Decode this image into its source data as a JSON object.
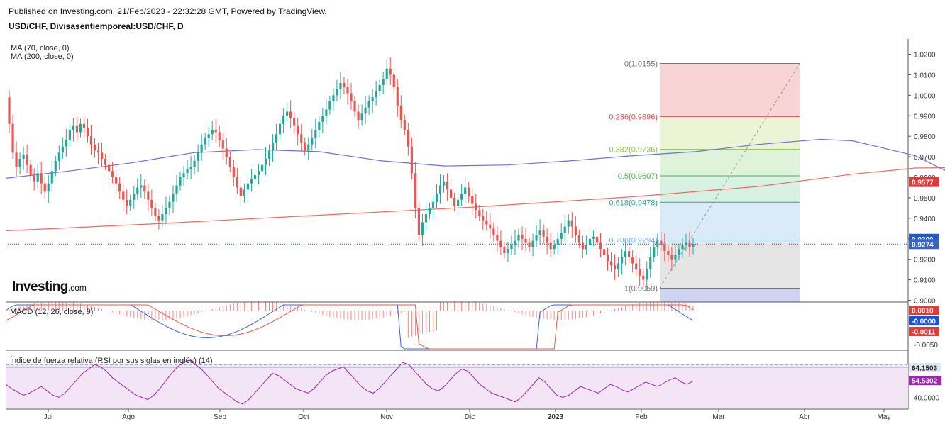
{
  "header": {
    "published": "Published on Investing.com, 21/Feb/2023 - 22:32:28 GMT, Powered by TradingView.",
    "symbol": "USD/CHF, Divisasentiemporeal:USD/CHF, D"
  },
  "indicators": {
    "ma70": "MA (70, close, 0)",
    "ma200": "MA (200, close, 0)",
    "macd": "MACD (12, 26, close, 9)",
    "rsi": "Índice de fuerza relativa (RSI por sus siglas en inglés) (14)"
  },
  "logo": {
    "main": "Investing",
    "suffix": ".com"
  },
  "colors": {
    "up": "#26a69a",
    "down": "#ef5350",
    "ma70": "#6b6fdc",
    "ma200": "#ef6a63",
    "macd_line": "#3d63d8",
    "signal_line": "#ef5350",
    "rsi_line": "#9c27b0",
    "rsi_fill": "#f3e5f5",
    "price_line": "#1e4fa0"
  },
  "chart_data": {
    "type": "candlestick",
    "x_ticks": [
      "Jul",
      "Ago",
      "Sep",
      "Oct",
      "Nov",
      "Dic",
      "2023",
      "Feb",
      "Mar",
      "Abr",
      "May"
    ],
    "price_ticks": [
      "1.0200",
      "1.0100",
      "1.0000",
      "0.9900",
      "0.9800",
      "0.9700",
      "0.9600",
      "0.9500",
      "0.9400",
      "0.9300",
      "0.9200",
      "0.9100",
      "0.9000"
    ],
    "price_range": [
      0.9,
      1.0205
    ],
    "last_price": "0.9274",
    "ma200_value": "0.9577",
    "fib_high_label": "0.9300",
    "fibonacci": [
      {
        "level": "0",
        "value": "1.0155",
        "label": "0(1.0155)",
        "price": 1.0155,
        "color": "#777777"
      },
      {
        "level": "0.236",
        "value": "0.9896",
        "label": "0.236(0.9896)",
        "price": 0.9896,
        "color": "#e0524f"
      },
      {
        "level": "0.382",
        "value": "0.9736",
        "label": "0.382(0.9736)",
        "price": 0.9736,
        "color": "#8bc34a"
      },
      {
        "level": "0.5",
        "value": "0.9607",
        "label": "0.5(0.9607)",
        "price": 0.9607,
        "color": "#4caf50"
      },
      {
        "level": "0.618",
        "value": "0.9478",
        "label": "0.618(0.9478)",
        "price": 0.9478,
        "color": "#26a69a"
      },
      {
        "level": "0.786",
        "value": "0.9294",
        "label": "0.786(0.9294)",
        "price": 0.9294,
        "color": "#64b5f6"
      },
      {
        "level": "1",
        "value": "0.9059",
        "label": "1(0.9059)",
        "price": 0.9059,
        "color": "#777777"
      }
    ],
    "ma70": [
      [
        0,
        0.9595
      ],
      [
        20,
        0.963
      ],
      [
        40,
        0.967
      ],
      [
        60,
        0.972
      ],
      [
        80,
        0.9735
      ],
      [
        100,
        0.9725
      ],
      [
        120,
        0.968
      ],
      [
        140,
        0.9655
      ],
      [
        160,
        0.966
      ],
      [
        180,
        0.968
      ],
      [
        200,
        0.9705
      ],
      [
        220,
        0.9725
      ],
      [
        240,
        0.976
      ],
      [
        260,
        0.9785
      ],
      [
        270,
        0.9778
      ],
      [
        280,
        0.9742
      ],
      [
        290,
        0.9705
      ],
      [
        300,
        0.963
      ],
      [
        310,
        0.9545
      ],
      [
        320,
        0.9445
      ],
      [
        326,
        0.9345
      ],
      [
        330,
        0.9325
      ]
    ],
    "ma200": [
      [
        0,
        0.9339
      ],
      [
        50,
        0.9375
      ],
      [
        100,
        0.9415
      ],
      [
        150,
        0.9455
      ],
      [
        200,
        0.9505
      ],
      [
        240,
        0.9555
      ],
      [
        270,
        0.9615
      ],
      [
        290,
        0.9645
      ],
      [
        310,
        0.9648
      ],
      [
        325,
        0.963
      ],
      [
        330,
        0.9577
      ]
    ],
    "closes": [
      0.999,
      0.986,
      0.972,
      0.965,
      0.969,
      0.971,
      0.966,
      0.961,
      0.958,
      0.962,
      0.957,
      0.953,
      0.957,
      0.963,
      0.968,
      0.972,
      0.975,
      0.978,
      0.983,
      0.985,
      0.982,
      0.986,
      0.984,
      0.98,
      0.976,
      0.973,
      0.972,
      0.969,
      0.966,
      0.963,
      0.96,
      0.957,
      0.953,
      0.949,
      0.946,
      0.949,
      0.952,
      0.955,
      0.956,
      0.953,
      0.949,
      0.945,
      0.941,
      0.939,
      0.942,
      0.945,
      0.948,
      0.952,
      0.956,
      0.96,
      0.962,
      0.964,
      0.965,
      0.968,
      0.972,
      0.976,
      0.979,
      0.981,
      0.983,
      0.982,
      0.978,
      0.974,
      0.97,
      0.965,
      0.96,
      0.955,
      0.951,
      0.954,
      0.957,
      0.959,
      0.961,
      0.963,
      0.966,
      0.969,
      0.973,
      0.977,
      0.981,
      0.986,
      0.99,
      0.992,
      0.989,
      0.985,
      0.981,
      0.977,
      0.973,
      0.976,
      0.979,
      0.983,
      0.987,
      0.99,
      0.993,
      0.997,
      1.0,
      1.003,
      1.006,
      1.004,
      1.001,
      0.997,
      0.992,
      0.988,
      0.991,
      0.994,
      0.997,
      0.999,
      1.002,
      1.005,
      1.008,
      1.013,
      1.01,
      1.004,
      0.995,
      0.988,
      0.983,
      0.975,
      0.962,
      0.945,
      0.932,
      0.938,
      0.942,
      0.945,
      0.948,
      0.952,
      0.956,
      0.958,
      0.954,
      0.95,
      0.946,
      0.949,
      0.952,
      0.955,
      0.951,
      0.947,
      0.944,
      0.941,
      0.939,
      0.937,
      0.935,
      0.932,
      0.929,
      0.926,
      0.923,
      0.925,
      0.927,
      0.929,
      0.932,
      0.93,
      0.928,
      0.926,
      0.929,
      0.932,
      0.934,
      0.931,
      0.928,
      0.925,
      0.927,
      0.93,
      0.933,
      0.936,
      0.939,
      0.936,
      0.932,
      0.928,
      0.925,
      0.927,
      0.93,
      0.931,
      0.928,
      0.925,
      0.922,
      0.919,
      0.917,
      0.915,
      0.918,
      0.921,
      0.924,
      0.921,
      0.918,
      0.915,
      0.912,
      0.91,
      0.915,
      0.921,
      0.926,
      0.929,
      0.927,
      0.924,
      0.922,
      0.92,
      0.922,
      0.925,
      0.927,
      0.928,
      0.926,
      0.9274
    ],
    "macd_ticks": [
      "0.0000",
      "-0.0050"
    ],
    "macd_labels": {
      "hist": "0.0010",
      "macd": "-0.0000",
      "signal": "-0.0011"
    },
    "rsi_ticks": [
      "40.0000"
    ],
    "rsi_labels": {
      "upper": "64.1503",
      "value": "54.5302"
    },
    "rsi": [
      52,
      48,
      45,
      42,
      44,
      47,
      50,
      46,
      42,
      40,
      44,
      50,
      56,
      62,
      66,
      70,
      68,
      64,
      58,
      54,
      50,
      46,
      42,
      40,
      38,
      42,
      48,
      55,
      62,
      68,
      72,
      74,
      70,
      66,
      60,
      54,
      48,
      44,
      40,
      36,
      34,
      38,
      44,
      50,
      56,
      62,
      60,
      56,
      52,
      48,
      46,
      44,
      48,
      54,
      60,
      64,
      66,
      68,
      62,
      56,
      50,
      46,
      44,
      48,
      54,
      60,
      66,
      72,
      70,
      64,
      58,
      52,
      48,
      46,
      50,
      56,
      62,
      66,
      64,
      58,
      52,
      48,
      44,
      42,
      40,
      38,
      36,
      40,
      46,
      52,
      58,
      54,
      48,
      42,
      40,
      42,
      46,
      50,
      48,
      46,
      44,
      48,
      52,
      50,
      47,
      45,
      48,
      51,
      54,
      52,
      50,
      53,
      56,
      58,
      54,
      52,
      55
    ]
  }
}
